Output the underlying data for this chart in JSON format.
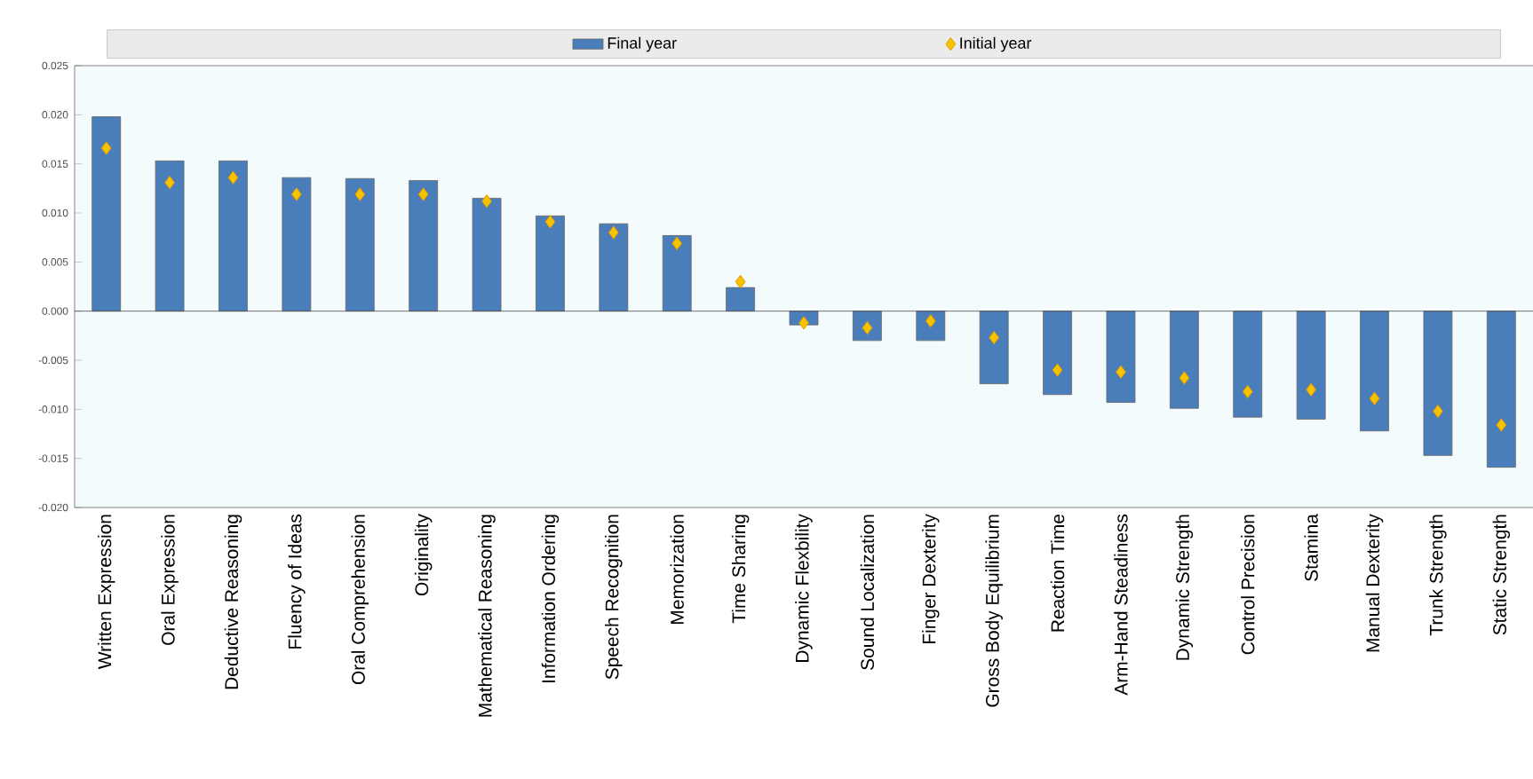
{
  "chart_data": {
    "type": "bar",
    "categories": [
      "Written Expression",
      "Oral Expression",
      "Deductive Reasoning",
      "Fluency of Ideas",
      "Oral Comprehension",
      "Originality",
      "Mathematical Reasoning",
      "Information Ordering",
      "Speech Recognition",
      "Memorization",
      "Time Sharing",
      "Dynamic Flexbility",
      "Sound Localization",
      "Finger Dexterity",
      "Gross Body Equilibrium",
      "Reaction Time",
      "Arm-Hand Steadiness",
      "Dynamic Strength",
      "Control Precision",
      "Stamina",
      "Manual Dexterity",
      "Trunk Strength",
      "Static Strength"
    ],
    "series": [
      {
        "name": "Final year",
        "type": "bar",
        "color": "#4a7ebb",
        "values": [
          0.0198,
          0.0153,
          0.0153,
          0.0136,
          0.0135,
          0.0133,
          0.0115,
          0.0097,
          0.0089,
          0.0077,
          0.0024,
          -0.0014,
          -0.003,
          -0.003,
          -0.0074,
          -0.0085,
          -0.0093,
          -0.0099,
          -0.0108,
          -0.011,
          -0.0122,
          -0.0147,
          -0.0159
        ]
      },
      {
        "name": "Initial year",
        "type": "scatter",
        "marker": "diamond",
        "color": "#f5c400",
        "values": [
          0.0166,
          0.0131,
          0.0136,
          0.0119,
          0.0119,
          0.0119,
          0.0112,
          0.0091,
          0.008,
          0.0069,
          0.003,
          -0.0012,
          -0.0017,
          -0.001,
          -0.0027,
          -0.006,
          -0.0062,
          -0.0068,
          -0.0082,
          -0.008,
          -0.0089,
          -0.0102,
          -0.0116
        ]
      }
    ],
    "ylim": [
      -0.02,
      0.025
    ],
    "yticks": [
      {
        "value": 0.025,
        "label": "0.025"
      },
      {
        "value": 0.02,
        "label": "0.020"
      },
      {
        "value": 0.015,
        "label": "0.015"
      },
      {
        "value": 0.01,
        "label": "0.010"
      },
      {
        "value": 0.005,
        "label": "0.005"
      },
      {
        "value": 0,
        "label": "0.000"
      },
      {
        "value": -0.005,
        "label": "-0.005"
      },
      {
        "value": -0.01,
        "label": "-0.010"
      },
      {
        "value": -0.015,
        "label": "-0.015"
      },
      {
        "value": -0.02,
        "label": "-0.020"
      }
    ],
    "legend": "top"
  }
}
